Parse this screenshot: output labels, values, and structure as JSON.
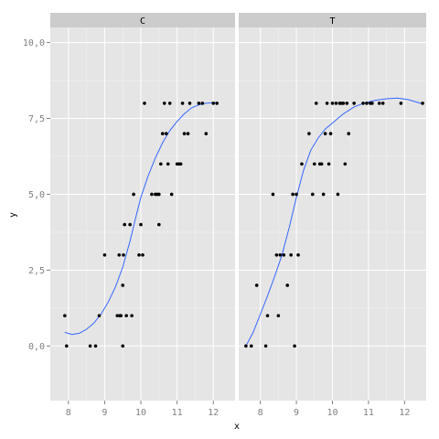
{
  "chart_data": {
    "type": "scatter",
    "xlabel": "x",
    "ylabel": "y",
    "ylim": [
      -1.8,
      10.5
    ],
    "yticks": [
      0.0,
      2.5,
      5.0,
      7.5,
      10.0
    ],
    "ytick_labels": [
      "0,0",
      "2,5",
      "5,0",
      "7,5",
      "10,0"
    ],
    "xticks": [
      8,
      9,
      10,
      11,
      12
    ],
    "xtick_labels": [
      "8",
      "9",
      "10",
      "11",
      "12"
    ],
    "grid": true,
    "colors": {
      "panel": "#e5e5e5",
      "strip": "#cccccc",
      "grid_major": "#ffffff",
      "grid_minor": "#f2f2f2",
      "point": "#000000",
      "smooth": "#3366ff"
    },
    "panels": [
      {
        "label": "C",
        "xlim": [
          7.5,
          12.6
        ],
        "points": [
          [
            7.9,
            1
          ],
          [
            7.95,
            0
          ],
          [
            8.6,
            0
          ],
          [
            8.75,
            0
          ],
          [
            8.85,
            1
          ],
          [
            9.0,
            3
          ],
          [
            9.35,
            1
          ],
          [
            9.4,
            3
          ],
          [
            9.42,
            1
          ],
          [
            9.45,
            1
          ],
          [
            9.5,
            2
          ],
          [
            9.5,
            0
          ],
          [
            9.52,
            3
          ],
          [
            9.55,
            4
          ],
          [
            9.6,
            1
          ],
          [
            9.7,
            4
          ],
          [
            9.75,
            1
          ],
          [
            9.8,
            5
          ],
          [
            9.95,
            3
          ],
          [
            10.0,
            4
          ],
          [
            10.05,
            3
          ],
          [
            10.1,
            8
          ],
          [
            10.3,
            5
          ],
          [
            10.4,
            5
          ],
          [
            10.45,
            5
          ],
          [
            10.5,
            4
          ],
          [
            10.5,
            5
          ],
          [
            10.55,
            6
          ],
          [
            10.6,
            7
          ],
          [
            10.65,
            8
          ],
          [
            10.7,
            7
          ],
          [
            10.75,
            6
          ],
          [
            10.8,
            8
          ],
          [
            10.85,
            5
          ],
          [
            11.0,
            6
          ],
          [
            11.05,
            6
          ],
          [
            11.1,
            6
          ],
          [
            11.15,
            8
          ],
          [
            11.2,
            7
          ],
          [
            11.3,
            7
          ],
          [
            11.35,
            8
          ],
          [
            11.6,
            8
          ],
          [
            11.7,
            8
          ],
          [
            11.8,
            7
          ],
          [
            12.0,
            8
          ],
          [
            12.1,
            8
          ]
        ],
        "smooth": [
          [
            7.9,
            0.45
          ],
          [
            8.1,
            0.38
          ],
          [
            8.3,
            0.42
          ],
          [
            8.5,
            0.55
          ],
          [
            8.7,
            0.75
          ],
          [
            8.9,
            1.05
          ],
          [
            9.1,
            1.45
          ],
          [
            9.3,
            1.95
          ],
          [
            9.5,
            2.6
          ],
          [
            9.7,
            3.45
          ],
          [
            9.85,
            4.2
          ],
          [
            10.0,
            4.9
          ],
          [
            10.2,
            5.6
          ],
          [
            10.4,
            6.2
          ],
          [
            10.6,
            6.7
          ],
          [
            10.8,
            7.1
          ],
          [
            11.0,
            7.4
          ],
          [
            11.2,
            7.65
          ],
          [
            11.4,
            7.85
          ],
          [
            11.6,
            7.95
          ],
          [
            11.8,
            8.0
          ],
          [
            12.0,
            8.02
          ],
          [
            12.1,
            8.02
          ]
        ]
      },
      {
        "label": "T",
        "xlim": [
          7.4,
          12.6
        ],
        "points": [
          [
            7.6,
            0
          ],
          [
            7.75,
            0
          ],
          [
            7.9,
            2
          ],
          [
            8.15,
            0
          ],
          [
            8.2,
            1
          ],
          [
            8.35,
            5
          ],
          [
            8.45,
            3
          ],
          [
            8.5,
            1
          ],
          [
            8.55,
            3
          ],
          [
            8.65,
            3
          ],
          [
            8.75,
            2
          ],
          [
            8.85,
            3
          ],
          [
            8.9,
            5
          ],
          [
            8.95,
            0
          ],
          [
            9.0,
            5
          ],
          [
            9.05,
            3
          ],
          [
            9.15,
            6
          ],
          [
            9.35,
            7
          ],
          [
            9.45,
            5
          ],
          [
            9.5,
            6
          ],
          [
            9.55,
            8
          ],
          [
            9.65,
            6
          ],
          [
            9.7,
            6
          ],
          [
            9.75,
            5
          ],
          [
            9.8,
            7
          ],
          [
            9.85,
            8
          ],
          [
            9.9,
            6
          ],
          [
            9.95,
            7
          ],
          [
            10.0,
            8
          ],
          [
            10.1,
            8
          ],
          [
            10.15,
            5
          ],
          [
            10.2,
            8
          ],
          [
            10.25,
            8
          ],
          [
            10.3,
            8
          ],
          [
            10.35,
            6
          ],
          [
            10.4,
            8
          ],
          [
            10.45,
            7
          ],
          [
            10.6,
            8
          ],
          [
            10.85,
            8
          ],
          [
            10.95,
            8
          ],
          [
            11.05,
            8
          ],
          [
            11.1,
            8
          ],
          [
            11.3,
            8
          ],
          [
            11.4,
            8
          ],
          [
            11.9,
            8
          ],
          [
            12.5,
            8
          ]
        ],
        "smooth": [
          [
            7.6,
            0.0
          ],
          [
            7.8,
            0.45
          ],
          [
            8.0,
            1.05
          ],
          [
            8.2,
            1.65
          ],
          [
            8.4,
            2.3
          ],
          [
            8.6,
            3.0
          ],
          [
            8.8,
            3.9
          ],
          [
            9.0,
            4.9
          ],
          [
            9.2,
            5.8
          ],
          [
            9.4,
            6.45
          ],
          [
            9.6,
            6.85
          ],
          [
            9.8,
            7.15
          ],
          [
            10.0,
            7.35
          ],
          [
            10.3,
            7.65
          ],
          [
            10.6,
            7.88
          ],
          [
            10.9,
            8.02
          ],
          [
            11.2,
            8.1
          ],
          [
            11.5,
            8.15
          ],
          [
            11.8,
            8.17
          ],
          [
            12.1,
            8.12
          ],
          [
            12.5,
            7.98
          ]
        ]
      }
    ]
  }
}
